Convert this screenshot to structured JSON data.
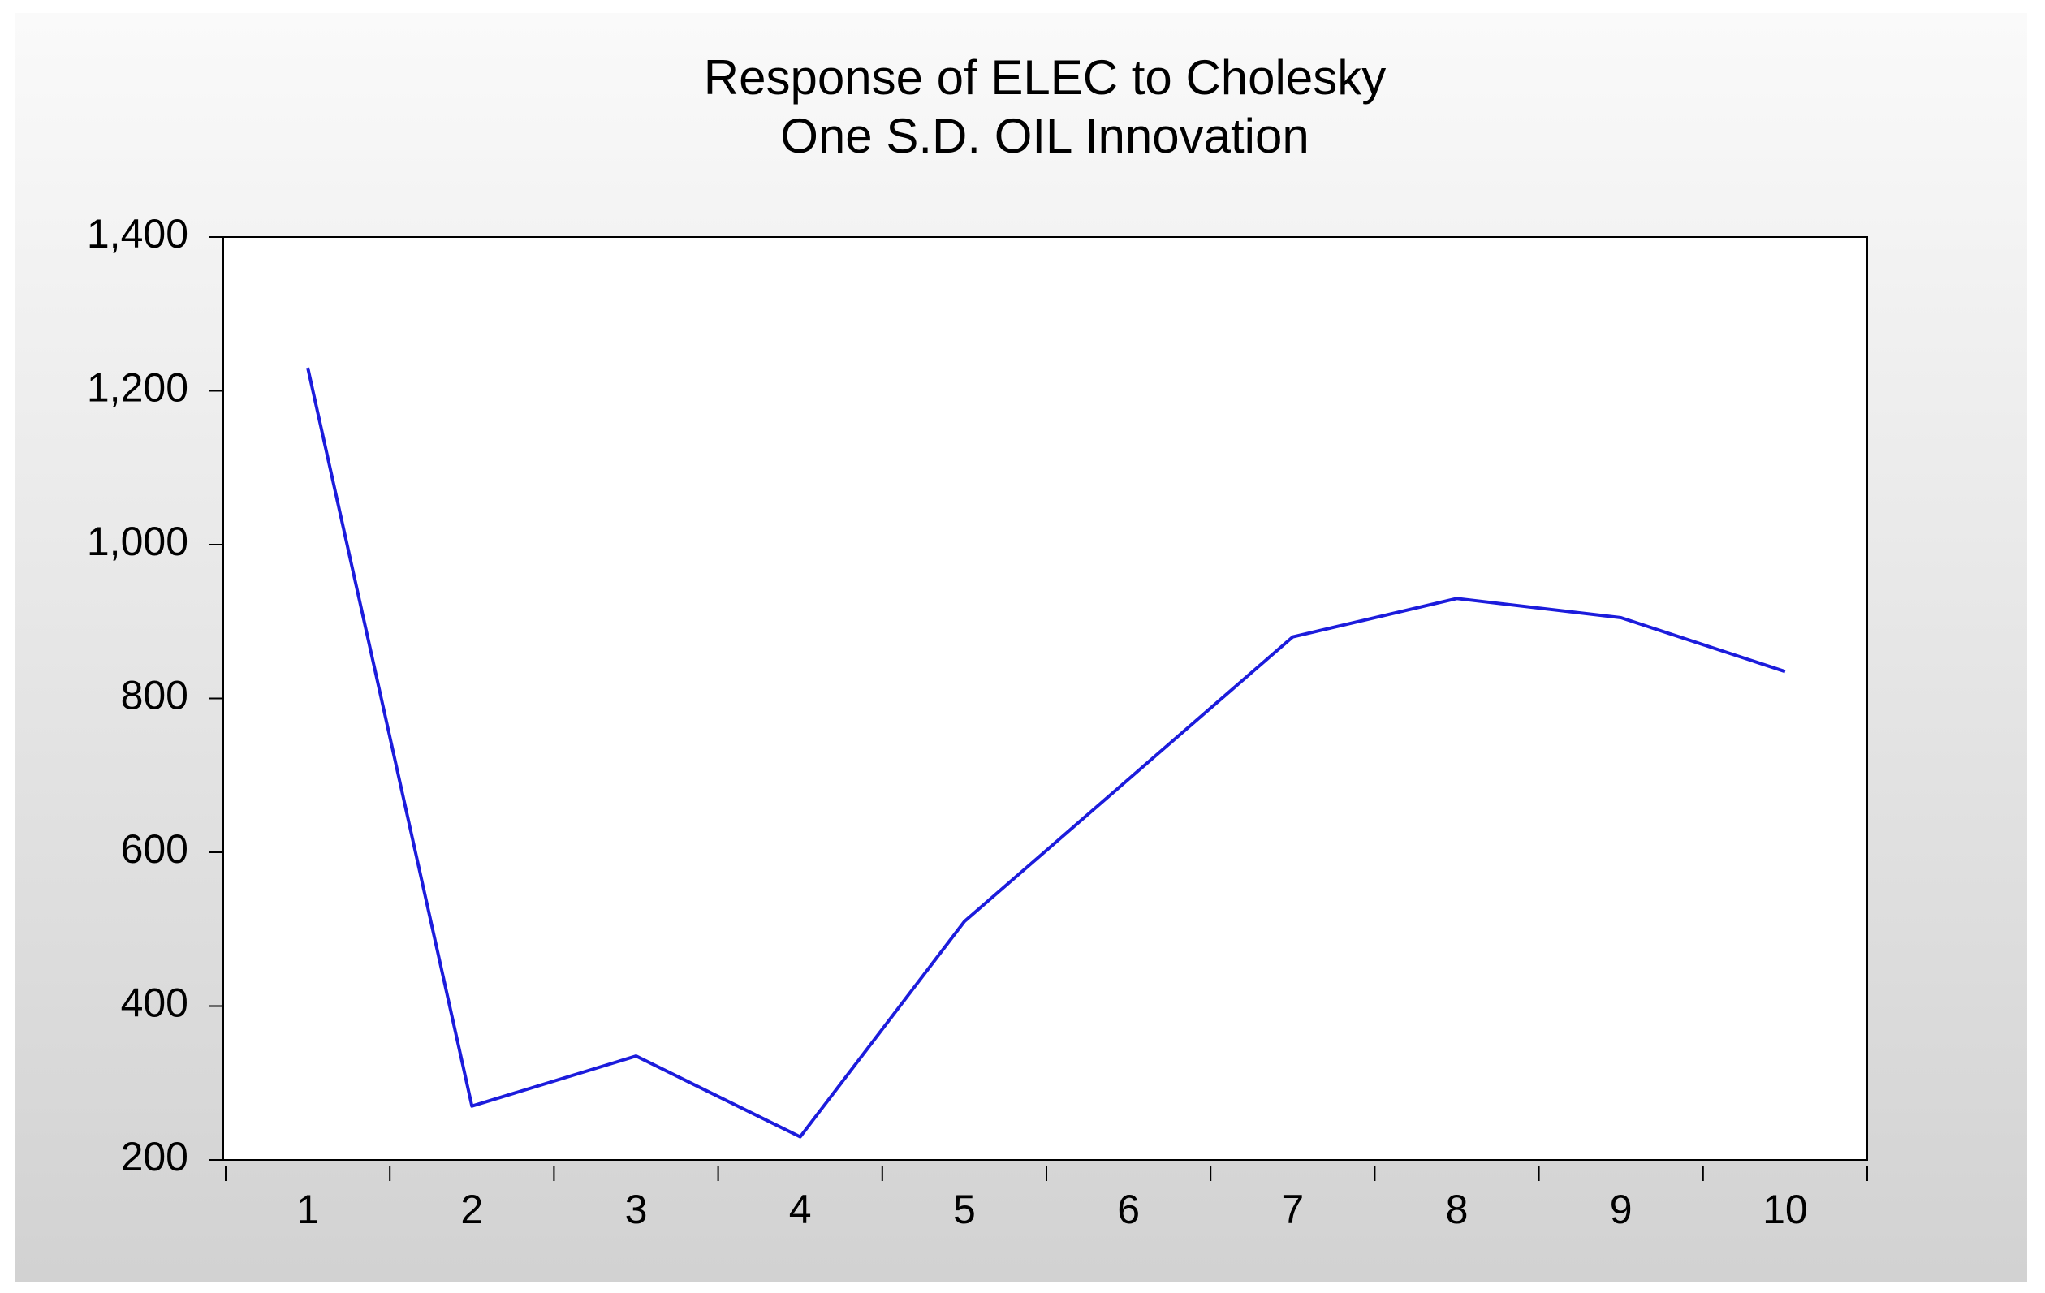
{
  "chart_data": {
    "type": "line",
    "title": [
      "Response of ELEC to Cholesky",
      "One S.D. OIL Innovation"
    ],
    "categories": [
      "1",
      "2",
      "3",
      "4",
      "5",
      "6",
      "7",
      "8",
      "9",
      "10"
    ],
    "series": [
      {
        "color": "#1c1cdc",
        "values": [
          1230,
          270,
          335,
          230,
          510,
          695,
          880,
          930,
          905,
          835
        ]
      }
    ],
    "ylim": [
      200,
      1400
    ],
    "yticks": [
      {
        "value": 200,
        "label": "200"
      },
      {
        "value": 400,
        "label": "400"
      },
      {
        "value": 600,
        "label": "600"
      },
      {
        "value": 800,
        "label": "800"
      },
      {
        "value": 1000,
        "label": "1,000"
      },
      {
        "value": 1200,
        "label": "1,200"
      },
      {
        "value": 1400,
        "label": "1,400"
      }
    ],
    "grid": false
  }
}
